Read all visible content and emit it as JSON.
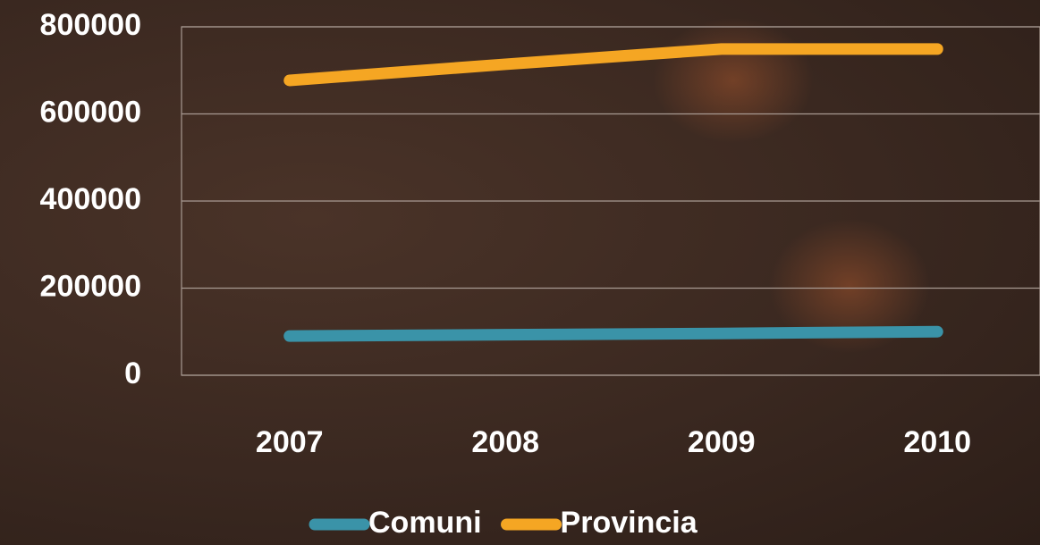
{
  "chart_data": {
    "type": "line",
    "categories": [
      "2007",
      "2008",
      "2009",
      "2010"
    ],
    "series": [
      {
        "name": "Comuni",
        "color": "#3a93a8",
        "values": [
          90000,
          93000,
          96000,
          100000
        ]
      },
      {
        "name": "Provincia",
        "color": "#f5a623",
        "values": [
          677000,
          714000,
          749000,
          749000
        ]
      }
    ],
    "ylim": [
      0,
      800000
    ],
    "yticks": [
      0,
      200000,
      400000,
      600000,
      800000
    ],
    "grid": true,
    "legend": "bottom"
  }
}
